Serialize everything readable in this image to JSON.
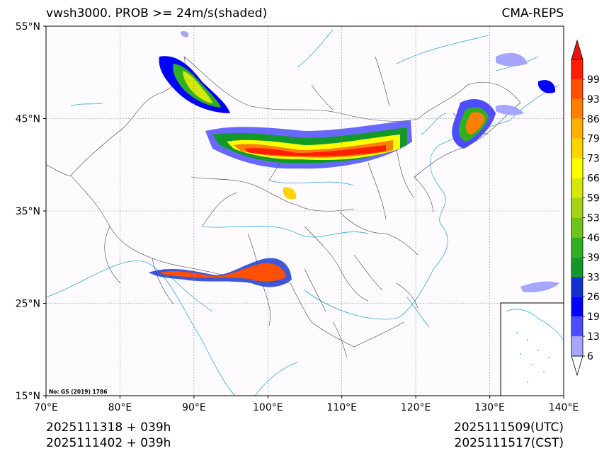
{
  "header": {
    "title": "vwsh3000. PROB >= 24m/s(shaded)",
    "model": "CMA-REPS"
  },
  "footer": {
    "init_line1": "2025111318  +  039h",
    "init_line2": "2025111402  +  039h",
    "valid_utc": "2025111509(UTC)",
    "valid_cst": "2025111517(CST)"
  },
  "map": {
    "approval_note": "No: GS (2019) 1786",
    "lat_ticks": [
      "55°N",
      "45°N",
      "35°N",
      "25°N",
      "15°N"
    ],
    "lon_ticks": [
      "70°E",
      "80°E",
      "90°E",
      "100°E",
      "110°E",
      "120°E",
      "130°E",
      "140°E"
    ],
    "extent": {
      "lon_min": 70,
      "lon_max": 140,
      "lat_min": 15,
      "lat_max": 55
    }
  },
  "colorbar": {
    "labels": [
      "6",
      "13",
      "19",
      "26",
      "33",
      "39",
      "46",
      "53",
      "59",
      "66",
      "73",
      "79",
      "86",
      "93",
      "99"
    ],
    "colors": [
      "#a6a6ff",
      "#4d4dff",
      "#0000ff",
      "#0f2fcf",
      "#119a2a",
      "#30b020",
      "#6ec41a",
      "#a4d414",
      "#d4e80c",
      "#ffff00",
      "#ffd400",
      "#ffb000",
      "#ff8000",
      "#ff4f00",
      "#ff1e00"
    ],
    "over_color": "#ee1010",
    "under_color": "#ffffff"
  }
}
